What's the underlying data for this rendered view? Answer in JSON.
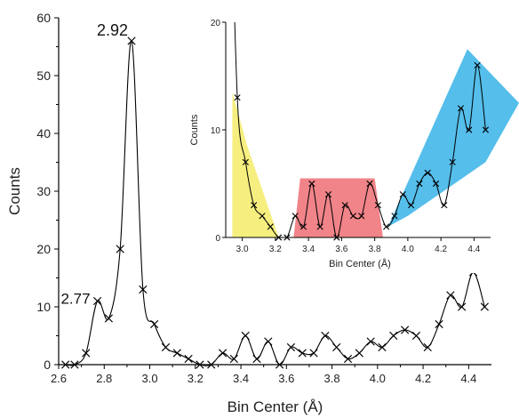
{
  "chart_data": [
    {
      "type": "line",
      "xlabel": "Bin Center (Å)",
      "ylabel": "Counts",
      "xlim": [
        2.6,
        4.5
      ],
      "ylim": [
        0,
        60
      ],
      "x_ticks": [
        "2.6",
        "2.8",
        "3.0",
        "3.2",
        "3.4",
        "3.6",
        "3.8",
        "4.0",
        "4.2",
        "4.4"
      ],
      "y_ticks": [
        "0",
        "10",
        "20",
        "30",
        "40",
        "50",
        "60"
      ],
      "marker": "x",
      "color": "#000000",
      "series": [
        {
          "x": [
            2.63,
            2.67,
            2.72,
            2.77,
            2.82,
            2.87,
            2.92,
            2.97,
            3.02,
            3.07,
            3.12,
            3.17,
            3.22,
            3.27,
            3.32,
            3.37,
            3.42,
            3.47,
            3.52,
            3.57,
            3.62,
            3.67,
            3.72,
            3.77,
            3.82,
            3.87,
            3.92,
            3.97,
            4.02,
            4.07,
            4.12,
            4.17,
            4.22,
            4.27,
            4.32,
            4.37,
            4.42,
            4.47
          ],
          "y": [
            0,
            0,
            2,
            11,
            8,
            20,
            56,
            13,
            7,
            3,
            2,
            1,
            0,
            0,
            2,
            1,
            5,
            1,
            4,
            0,
            3,
            2,
            2,
            5,
            3,
            1,
            2,
            4,
            3,
            5,
            6,
            5,
            3,
            7,
            12,
            10,
            16,
            10
          ]
        }
      ],
      "annotations": [
        {
          "text": "2.92",
          "x": 2.92,
          "y": 56
        },
        {
          "text": "2.77",
          "x": 2.77,
          "y": 11
        }
      ]
    },
    {
      "type": "line",
      "xlabel": "Bin Center (Å)",
      "ylabel": "Counts",
      "xlim": [
        2.9,
        4.5
      ],
      "ylim": [
        0,
        20
      ],
      "x_ticks": [
        "3.0",
        "3.2",
        "3.4",
        "3.6",
        "3.8",
        "4.0",
        "4.2",
        "4.4"
      ],
      "y_ticks": [
        "0",
        "10",
        "20"
      ],
      "marker": "x",
      "color": "#000000",
      "series": [
        {
          "x": [
            2.97,
            3.02,
            3.07,
            3.12,
            3.17,
            3.22,
            3.27,
            3.32,
            3.37,
            3.42,
            3.47,
            3.52,
            3.57,
            3.62,
            3.67,
            3.72,
            3.77,
            3.82,
            3.87,
            3.92,
            3.97,
            4.02,
            4.07,
            4.12,
            4.17,
            4.22,
            4.27,
            4.32,
            4.37,
            4.42,
            4.47
          ],
          "y": [
            13,
            7,
            3,
            2,
            1,
            0,
            0,
            2,
            1,
            5,
            1,
            4,
            0,
            3,
            2,
            2,
            5,
            3,
            1,
            2,
            4,
            3,
            5,
            6,
            5,
            3,
            7,
            12,
            10,
            16,
            10
          ]
        }
      ],
      "highlights": [
        {
          "color": "#f5ec6a",
          "x_range": [
            2.92,
            3.22
          ]
        },
        {
          "color": "#ef6f74",
          "x_range": [
            3.33,
            3.84
          ]
        },
        {
          "color": "#37b3e8",
          "x_range": [
            3.88,
            4.6
          ]
        }
      ]
    }
  ]
}
